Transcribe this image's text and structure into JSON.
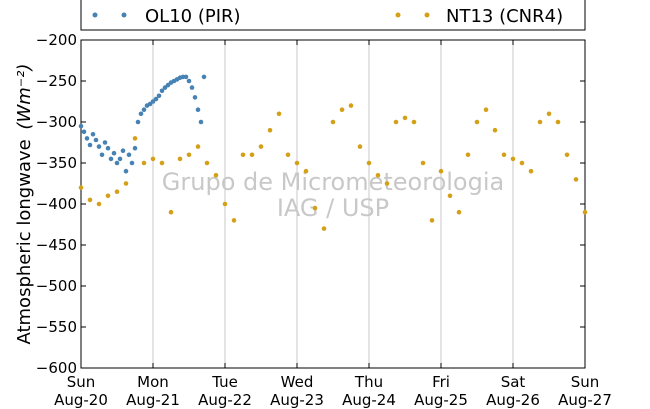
{
  "chart_data": {
    "type": "scatter",
    "title": "",
    "xlabel": "",
    "ylabel": "Atmospheric longwave",
    "ylabel_unit": "(Wm⁻²)",
    "ylim": [
      -600,
      -200
    ],
    "yticks": [
      -200,
      -250,
      -300,
      -350,
      -400,
      -450,
      -500,
      -550,
      -600
    ],
    "xlim": [
      "2017-08-20",
      "2017-08-27"
    ],
    "xticks": [
      {
        "date": "2017-08-20",
        "day": "Sun",
        "label": "Aug-20"
      },
      {
        "date": "2017-08-21",
        "day": "Mon",
        "label": "Aug-21"
      },
      {
        "date": "2017-08-22",
        "day": "Tue",
        "label": "Aug-22"
      },
      {
        "date": "2017-08-23",
        "day": "Wed",
        "label": "Aug-23"
      },
      {
        "date": "2017-08-24",
        "day": "Thu",
        "label": "Aug-24"
      },
      {
        "date": "2017-08-25",
        "day": "Fri",
        "label": "Aug-25"
      },
      {
        "date": "2017-08-26",
        "day": "Sat",
        "label": "Aug-26"
      },
      {
        "date": "2017-08-27",
        "day": "Sun",
        "label": "Aug-27"
      }
    ],
    "grid": "x",
    "legend_position": "top",
    "watermark": [
      "Grupo de Micrometeorologia",
      "IAG / USP"
    ],
    "series": [
      {
        "name": "OL10 (PIR)",
        "color": "#4682b4",
        "x": [
          "2017-08-20 00:00",
          "2017-08-20 01:00",
          "2017-08-20 02:00",
          "2017-08-20 03:00",
          "2017-08-20 04:00",
          "2017-08-20 05:00",
          "2017-08-20 06:00",
          "2017-08-20 07:00",
          "2017-08-20 08:00",
          "2017-08-20 09:00",
          "2017-08-20 10:00",
          "2017-08-20 11:00",
          "2017-08-20 12:00",
          "2017-08-20 13:00",
          "2017-08-20 14:00",
          "2017-08-20 15:00",
          "2017-08-20 16:00",
          "2017-08-20 17:00",
          "2017-08-20 18:00",
          "2017-08-20 19:00",
          "2017-08-20 20:00",
          "2017-08-20 21:00",
          "2017-08-20 22:00",
          "2017-08-20 23:00",
          "2017-08-21 00:00",
          "2017-08-21 01:00",
          "2017-08-21 02:00",
          "2017-08-21 03:00",
          "2017-08-21 04:00",
          "2017-08-21 05:00",
          "2017-08-21 06:00",
          "2017-08-21 07:00",
          "2017-08-21 08:00",
          "2017-08-21 09:00",
          "2017-08-21 10:00",
          "2017-08-21 11:00",
          "2017-08-21 12:00",
          "2017-08-21 13:00",
          "2017-08-21 14:00",
          "2017-08-21 15:00",
          "2017-08-21 16:00",
          "2017-08-21 17:00"
        ],
        "y": [
          -305,
          -312,
          -320,
          -328,
          -315,
          -322,
          -330,
          -340,
          -325,
          -332,
          -345,
          -338,
          -350,
          -345,
          -335,
          -360,
          -340,
          -350,
          -332,
          -300,
          -290,
          -285,
          -280,
          -278,
          -275,
          -272,
          -268,
          -262,
          -258,
          -255,
          -252,
          -250,
          -248,
          -246,
          -245,
          -245,
          -250,
          -258,
          -270,
          -285,
          -300,
          -245
        ]
      },
      {
        "name": "NT13 (CNR4)",
        "color": "#d4a017",
        "x": [
          "2017-08-20 00:00",
          "2017-08-20 03:00",
          "2017-08-20 06:00",
          "2017-08-20 09:00",
          "2017-08-20 12:00",
          "2017-08-20 15:00",
          "2017-08-20 18:00",
          "2017-08-20 21:00",
          "2017-08-21 00:00",
          "2017-08-21 03:00",
          "2017-08-21 06:00",
          "2017-08-21 09:00",
          "2017-08-21 12:00",
          "2017-08-21 15:00",
          "2017-08-21 18:00",
          "2017-08-21 21:00",
          "2017-08-22 00:00",
          "2017-08-22 03:00",
          "2017-08-22 06:00",
          "2017-08-22 09:00",
          "2017-08-22 12:00",
          "2017-08-22 15:00",
          "2017-08-22 18:00",
          "2017-08-22 21:00",
          "2017-08-23 00:00",
          "2017-08-23 03:00",
          "2017-08-23 06:00",
          "2017-08-23 09:00",
          "2017-08-23 12:00",
          "2017-08-23 15:00",
          "2017-08-23 18:00",
          "2017-08-23 21:00",
          "2017-08-24 00:00",
          "2017-08-24 03:00",
          "2017-08-24 06:00",
          "2017-08-24 09:00",
          "2017-08-24 12:00",
          "2017-08-24 15:00",
          "2017-08-24 18:00",
          "2017-08-24 21:00",
          "2017-08-25 00:00",
          "2017-08-25 03:00",
          "2017-08-25 06:00",
          "2017-08-25 09:00",
          "2017-08-25 12:00",
          "2017-08-25 15:00",
          "2017-08-25 18:00",
          "2017-08-25 21:00",
          "2017-08-26 00:00",
          "2017-08-26 03:00",
          "2017-08-26 06:00",
          "2017-08-26 09:00",
          "2017-08-26 12:00",
          "2017-08-26 15:00",
          "2017-08-26 18:00",
          "2017-08-26 21:00",
          "2017-08-27 00:00"
        ],
        "y": [
          -380,
          -395,
          -400,
          -390,
          -385,
          -375,
          -320,
          -350,
          -345,
          -350,
          -410,
          -345,
          -340,
          -330,
          -350,
          -365,
          -400,
          -420,
          -340,
          -340,
          -330,
          -310,
          -290,
          -340,
          -350,
          -360,
          -405,
          -430,
          -300,
          -285,
          -280,
          -330,
          -350,
          -365,
          -375,
          -300,
          -295,
          -300,
          -350,
          -420,
          -360,
          -390,
          -410,
          -340,
          -300,
          -285,
          -310,
          -340,
          -345,
          -350,
          -360,
          -300,
          -290,
          -300,
          -340,
          -370,
          -410
        ]
      }
    ]
  }
}
